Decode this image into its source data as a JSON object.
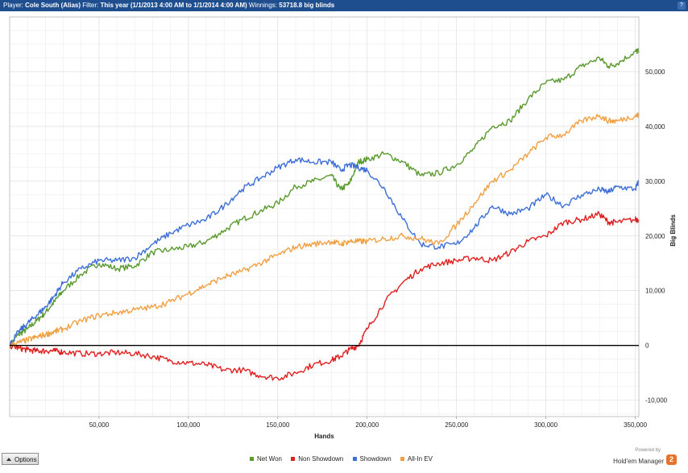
{
  "header": {
    "player_label": "Player:",
    "player": "Cole South (Alias)",
    "filter_label": "Filter:",
    "filter": "This year (1/1/2013 4:00 AM to 1/1/2014 4:00 AM)",
    "winnings_label": "Winnings:",
    "winnings": "53718.8 big blinds",
    "help_icon": "?"
  },
  "footer": {
    "options_label": "Options",
    "powered_by": "Powered by",
    "brand": "Hold'em Manager",
    "brand_badge": "2"
  },
  "colors": {
    "net_won": "#5a9a2f",
    "non_showdown": "#e02121",
    "showdown": "#3e6fd6",
    "all_in_ev": "#f0a043",
    "header_bg": "#1f4e8f"
  },
  "chart_data": {
    "type": "line",
    "xlabel": "Hands",
    "ylabel": "Big Blinds",
    "xlim": [
      0,
      352000
    ],
    "ylim": [
      -13000,
      60000
    ],
    "x_ticks": [
      50000,
      100000,
      150000,
      200000,
      250000,
      300000,
      350000
    ],
    "x_tick_labels": [
      "50,000",
      "100,000",
      "150,000",
      "200,000",
      "250,000",
      "300,000",
      "350,000"
    ],
    "y_ticks": [
      -10000,
      0,
      10000,
      20000,
      30000,
      40000,
      50000
    ],
    "y_tick_labels": [
      "-10,000",
      "0",
      "10,000",
      "20,000",
      "30,000",
      "40,000",
      "50,000"
    ],
    "y_axis_side": "right",
    "grid": true,
    "legend_position": "bottom",
    "x": [
      0,
      5000,
      10000,
      15000,
      20000,
      25000,
      30000,
      40000,
      50000,
      60000,
      70000,
      80000,
      90000,
      100000,
      110000,
      120000,
      130000,
      140000,
      150000,
      160000,
      170000,
      180000,
      185000,
      190000,
      195000,
      200000,
      210000,
      220000,
      230000,
      240000,
      250000,
      260000,
      270000,
      280000,
      290000,
      300000,
      310000,
      320000,
      330000,
      335000,
      340000,
      350000,
      352000
    ],
    "series": [
      {
        "name": "Net Won",
        "color": "#5a9a2f",
        "values": [
          0,
          2000,
          3000,
          4500,
          6000,
          8000,
          10000,
          13000,
          15000,
          14000,
          14500,
          17000,
          17500,
          18000,
          19000,
          21000,
          23000,
          24500,
          26000,
          29000,
          30000,
          31000,
          28500,
          29500,
          33500,
          34000,
          35000,
          33500,
          31000,
          31500,
          33000,
          36000,
          40000,
          41000,
          45000,
          48000,
          48500,
          51000,
          52500,
          51000,
          51500,
          53700,
          53700
        ]
      },
      {
        "name": "Non Showdown",
        "color": "#e02121",
        "values": [
          0,
          -500,
          -800,
          -1000,
          -1000,
          -1000,
          -1200,
          -1500,
          -1500,
          -1300,
          -1500,
          -2000,
          -2800,
          -3200,
          -3500,
          -4500,
          -4500,
          -5500,
          -6000,
          -5000,
          -3500,
          -2700,
          -2000,
          -800,
          0,
          3000,
          8000,
          11500,
          14000,
          15000,
          15500,
          16000,
          15500,
          17000,
          19000,
          20000,
          22500,
          23000,
          24000,
          22500,
          22500,
          23000,
          23000
        ]
      },
      {
        "name": "Showdown",
        "color": "#3e6fd6",
        "values": [
          0,
          2500,
          4000,
          5500,
          7000,
          9000,
          11500,
          14000,
          15500,
          15500,
          16000,
          18500,
          20500,
          22000,
          23000,
          25500,
          28500,
          30500,
          32500,
          34000,
          33500,
          33500,
          32000,
          33000,
          32500,
          32000,
          28500,
          23000,
          18500,
          18000,
          18500,
          21500,
          25500,
          24000,
          25000,
          27500,
          25500,
          27500,
          28500,
          28000,
          29000,
          28500,
          30000
        ]
      },
      {
        "name": "All-In EV",
        "color": "#f0a043",
        "values": [
          0,
          500,
          1000,
          1500,
          2000,
          2500,
          3000,
          4500,
          5500,
          6000,
          6500,
          7000,
          8000,
          9500,
          11000,
          12500,
          13500,
          15000,
          16500,
          18000,
          18500,
          19000,
          18500,
          19000,
          19000,
          19000,
          19500,
          20000,
          19500,
          18500,
          22000,
          26000,
          30000,
          32000,
          35000,
          38000,
          38500,
          41000,
          42000,
          41000,
          41000,
          42000,
          42000
        ]
      }
    ],
    "zero_line": true
  }
}
